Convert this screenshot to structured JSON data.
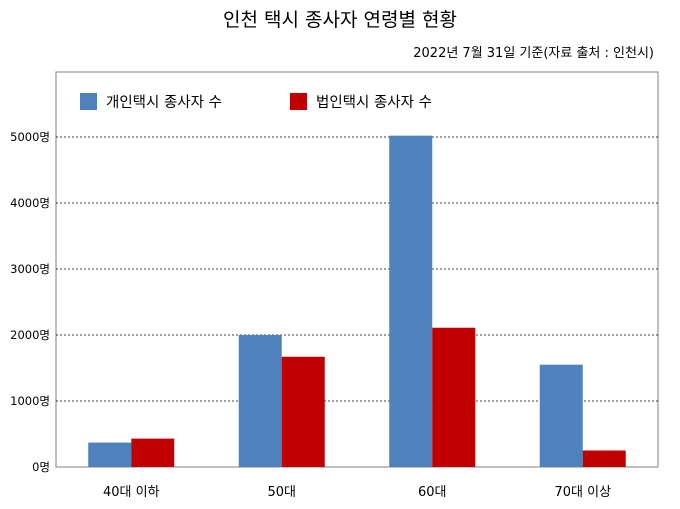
{
  "chart_data": {
    "type": "bar",
    "title": "인천 택시 종사자 연령별 현황",
    "subtitle": "2022년 7월 31일 기준(자료 출처 : 인천시)",
    "categories": [
      "40대 이하",
      "50대",
      "60대",
      "70대 이상"
    ],
    "series": [
      {
        "name": "개인택시 종사자 수",
        "color": "#4f81bd",
        "values": [
          370,
          2000,
          5020,
          1550
        ]
      },
      {
        "name": "법인택시 종사자 수",
        "color": "#c00000",
        "values": [
          430,
          1670,
          2110,
          250
        ]
      }
    ],
    "y_ticks": [
      "0명",
      "1000명",
      "2000명",
      "3000명",
      "4000명",
      "5000명"
    ],
    "ylim": [
      0,
      6000
    ],
    "grid": true,
    "legend_position": "top-left"
  }
}
